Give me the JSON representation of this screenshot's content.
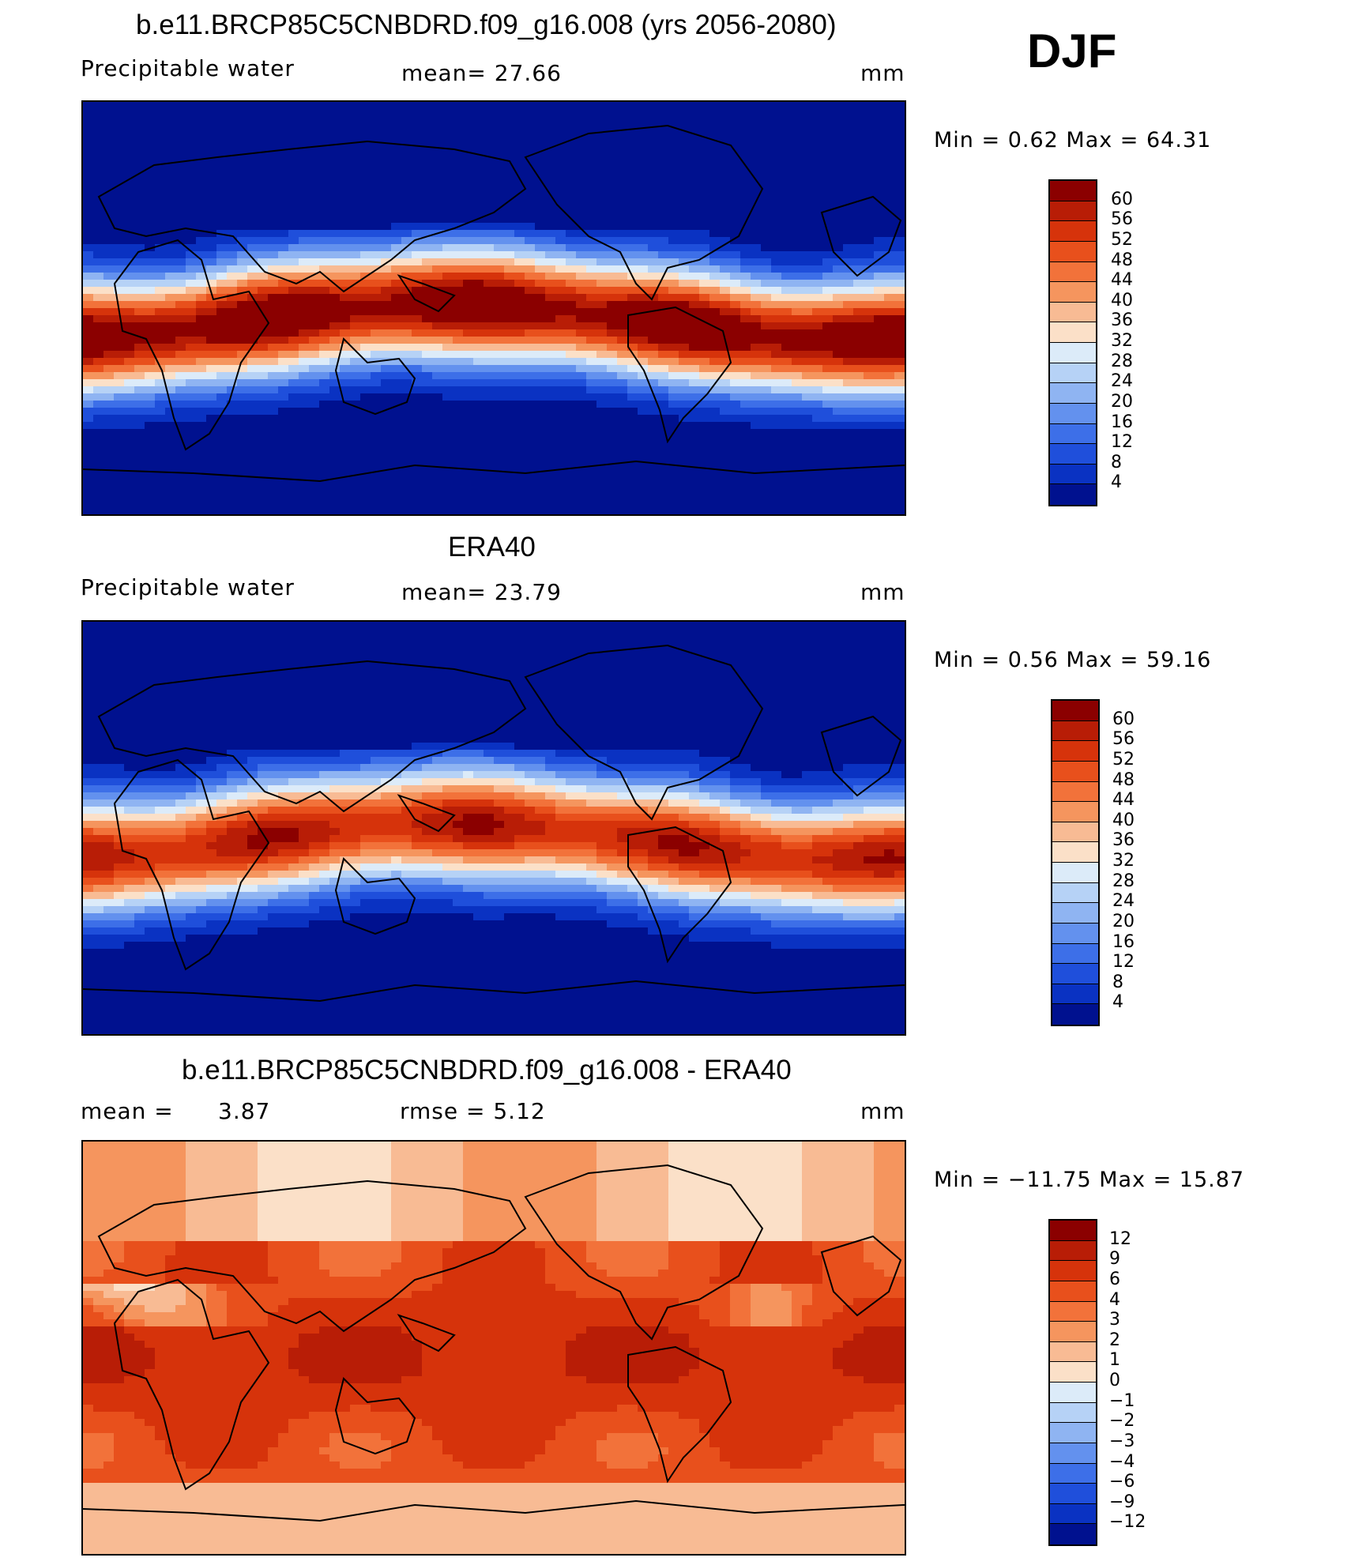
{
  "season": "DJF",
  "panels": [
    {
      "title": "b.e11.BRCP85C5CNBDRD.f09_g16.008 (yrs 2056-2080)",
      "variable": "Precipitable  water",
      "stat1": "mean=   27.66",
      "units": "mm",
      "minmax": "Min  =     0.62  Max  =    64.31",
      "scheme": "absolute",
      "colorbar": {
        "labels": [
          "60",
          "56",
          "52",
          "48",
          "44",
          "40",
          "36",
          "32",
          "28",
          "24",
          "20",
          "16",
          "12",
          "8",
          "4"
        ],
        "colors": [
          "#8b0000",
          "#b81d06",
          "#d6330b",
          "#e8501c",
          "#f2723a",
          "#f5955e",
          "#f8bb94",
          "#fbe0c8",
          "#dcebf9",
          "#b6d2f6",
          "#8fb4f2",
          "#6391ee",
          "#3d6fe8",
          "#1f4fdb",
          "#0a32c2",
          "#00118f"
        ]
      }
    },
    {
      "title": "ERA40",
      "variable": "Precipitable  water",
      "stat1": "mean=   23.79",
      "units": "mm",
      "minmax": "Min  =     0.56  Max  =    59.16",
      "scheme": "absolute",
      "colorbar": {
        "labels": [
          "60",
          "56",
          "52",
          "48",
          "44",
          "40",
          "36",
          "32",
          "28",
          "24",
          "20",
          "16",
          "12",
          "8",
          "4"
        ],
        "colors": [
          "#8b0000",
          "#b81d06",
          "#d6330b",
          "#e8501c",
          "#f2723a",
          "#f5955e",
          "#f8bb94",
          "#fbe0c8",
          "#dcebf9",
          "#b6d2f6",
          "#8fb4f2",
          "#6391ee",
          "#3d6fe8",
          "#1f4fdb",
          "#0a32c2",
          "#00118f"
        ]
      }
    },
    {
      "title": "b.e11.BRCP85C5CNBDRD.f09_g16.008 - ERA40",
      "variable": "mean  =",
      "stat_value": "3.87",
      "stat1": "rmse  =     5.12",
      "units": "mm",
      "minmax": "Min  =  −11.75  Max  =     15.87",
      "scheme": "difference",
      "colorbar": {
        "labels": [
          "12",
          "9",
          "6",
          "4",
          "3",
          "2",
          "1",
          "0",
          "−1",
          "−2",
          "−3",
          "−4",
          "−6",
          "−9",
          "−12"
        ],
        "colors": [
          "#8b0000",
          "#b81d06",
          "#d6330b",
          "#e8501c",
          "#f2723a",
          "#f5955e",
          "#f8bb94",
          "#fbe0c8",
          "#dcebf9",
          "#b6d2f6",
          "#8fb4f2",
          "#6391ee",
          "#3d6fe8",
          "#1f4fdb",
          "#0a32c2",
          "#00118f"
        ]
      }
    }
  ]
}
